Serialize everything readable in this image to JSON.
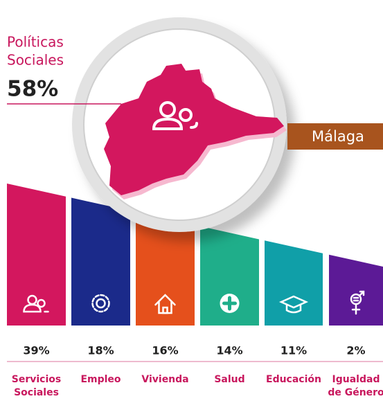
{
  "headline": {
    "label_lines": [
      "Políticas",
      "Sociales"
    ],
    "value": "58%"
  },
  "region": "Málaga",
  "items": [
    {
      "value": "39%",
      "label_lines": [
        "Servicios",
        "Sociales"
      ]
    },
    {
      "value": "18%",
      "label_lines": [
        "Empleo"
      ]
    },
    {
      "value": "16%",
      "label_lines": [
        "Vivienda"
      ]
    },
    {
      "value": "14%",
      "label_lines": [
        "Salud"
      ]
    },
    {
      "value": "11%",
      "label_lines": [
        "Educación"
      ]
    },
    {
      "value": "2%",
      "label_lines": [
        "Igualdad",
        "de Género"
      ]
    }
  ]
}
